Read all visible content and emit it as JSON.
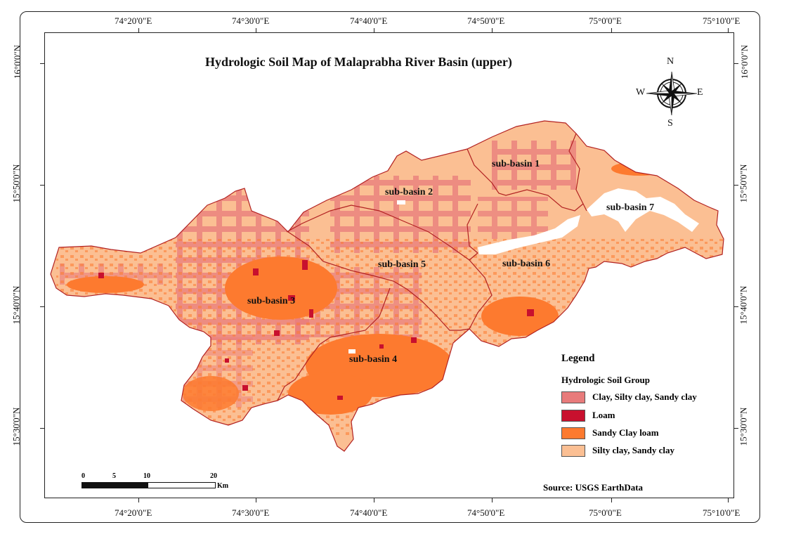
{
  "map": {
    "title": "Hydrologic Soil Map of Malaprabha River Basin (upper)",
    "lon_labels": [
      "74°20'0\"E",
      "74°30'0\"E",
      "74°40'0\"E",
      "74°50'0\"E",
      "75°0'0\"E",
      "75°10'0\"E"
    ],
    "lat_labels": [
      "16°0'0\"N",
      "15°50'0\"N",
      "15°40'0\"N",
      "15°30'0\"N"
    ],
    "sub_basins": [
      "sub-basin 1",
      "sub-basin 2",
      "sub-basin 3",
      "sub-basin 4",
      "sub-basin 5",
      "sub-basin 6",
      "sub-basin 7"
    ],
    "compass": {
      "n": "N",
      "s": "S",
      "e": "E",
      "w": "W"
    },
    "scale": {
      "ticks": [
        "0",
        "5",
        "10",
        "20"
      ],
      "unit": "Km"
    },
    "source": "Source: USGS EarthData",
    "colors": {
      "clay": "#e87b7b",
      "loam": "#c8102e",
      "sandy_clay_loam": "#fd7a2f",
      "silty_clay": "#fbbf93",
      "basin_boundary": "#b22222",
      "water": "#ffffff"
    }
  },
  "legend": {
    "title": "Legend",
    "group_title": "Hydrologic Soil Group",
    "items": [
      {
        "label": "Clay, Silty clay, Sandy clay",
        "color": "#e87b7b"
      },
      {
        "label": "Loam",
        "color": "#c8102e"
      },
      {
        "label": "Sandy Clay loam",
        "color": "#fd7a2f"
      },
      {
        "label": "Silty clay, Sandy clay",
        "color": "#fbbf93"
      }
    ]
  }
}
